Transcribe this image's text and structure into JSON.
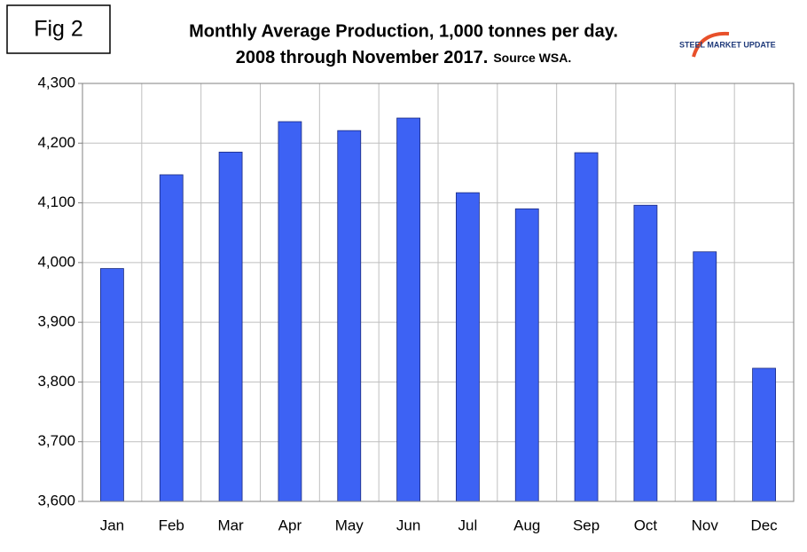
{
  "chart_data": {
    "type": "bar",
    "figure_label": "Fig 2",
    "title": "Monthly Average Production, 1,000 tonnes per day.",
    "subtitle": "2008 through November 2017.",
    "source": "Source WSA.",
    "logo": "STEEL MARKET UPDATE",
    "categories": [
      "Jan",
      "Feb",
      "Mar",
      "Apr",
      "May",
      "Jun",
      "Jul",
      "Aug",
      "Sep",
      "Oct",
      "Nov",
      "Dec"
    ],
    "values": [
      3990,
      4147,
      4185,
      4236,
      4221,
      4242,
      4117,
      4090,
      4184,
      4096,
      4018,
      3823
    ],
    "color": "#3d62f4",
    "ylim": [
      3600,
      4300
    ],
    "yticks": [
      {
        "value": 3600,
        "label": "3,600"
      },
      {
        "value": 3700,
        "label": "3,700"
      },
      {
        "value": 3800,
        "label": "3,800"
      },
      {
        "value": 3900,
        "label": "3,900"
      },
      {
        "value": 4000,
        "label": "4,000"
      },
      {
        "value": 4100,
        "label": "4,100"
      },
      {
        "value": 4200,
        "label": "4,200"
      },
      {
        "value": 4300,
        "label": "4,300"
      }
    ],
    "grid": true
  }
}
